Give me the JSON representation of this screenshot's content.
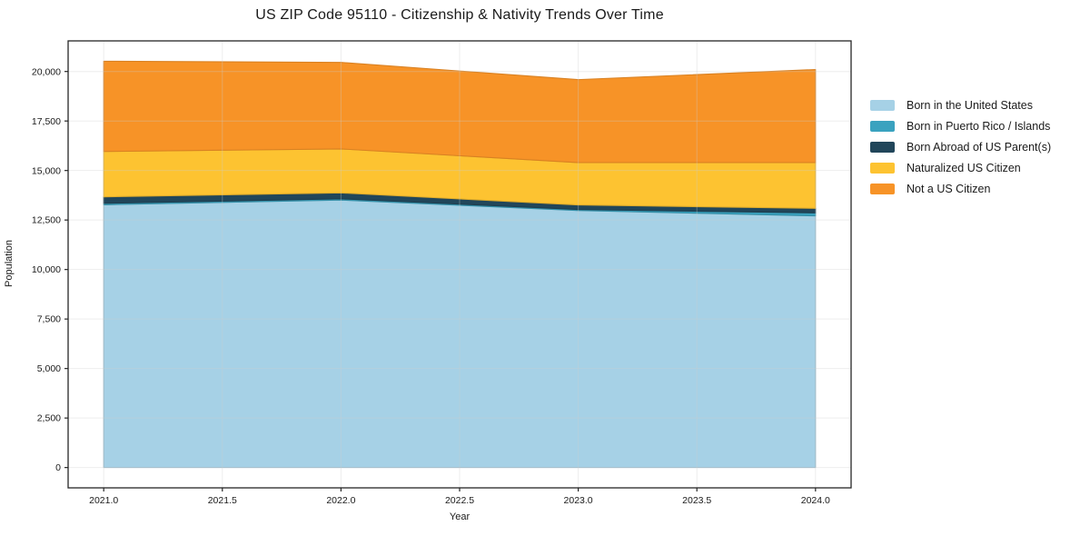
{
  "chart_data": {
    "type": "area",
    "stacked": true,
    "title": "US ZIP Code 95110 - Citizenship & Nativity Trends Over Time",
    "xlabel": "Year",
    "ylabel": "Population",
    "x": [
      2021,
      2022,
      2023,
      2024
    ],
    "series": [
      {
        "name": "Born in the United States",
        "color": "#a6d1e6",
        "values": [
          13270,
          13510,
          12980,
          12710
        ]
      },
      {
        "name": "Born in Puerto Rico / Islands",
        "color": "#3aa2bf",
        "values": [
          70,
          60,
          50,
          150
        ]
      },
      {
        "name": "Born Abroad of US Parent(s)",
        "color": "#21465a",
        "values": [
          330,
          300,
          230,
          230
        ]
      },
      {
        "name": "Naturalized US Citizen",
        "color": "#fdc331",
        "values": [
          2290,
          2220,
          2140,
          2310
        ]
      },
      {
        "name": "Not a US Citizen",
        "color": "#f79327",
        "values": [
          4560,
          4370,
          4190,
          4700
        ]
      }
    ],
    "totals": [
      20520,
      20460,
      19590,
      20100
    ],
    "xlim": [
      2020.85,
      2024.15
    ],
    "ylim": [
      -1026,
      21546
    ],
    "xticks": [
      2021.0,
      2021.5,
      2022.0,
      2022.5,
      2023.0,
      2023.5,
      2024.0
    ],
    "yticks": [
      0,
      2500,
      5000,
      7500,
      10000,
      12500,
      15000,
      17500,
      20000
    ],
    "grid": true,
    "grid_color": "#cccccc",
    "axis_color": "#262626",
    "legend_position": "right"
  }
}
